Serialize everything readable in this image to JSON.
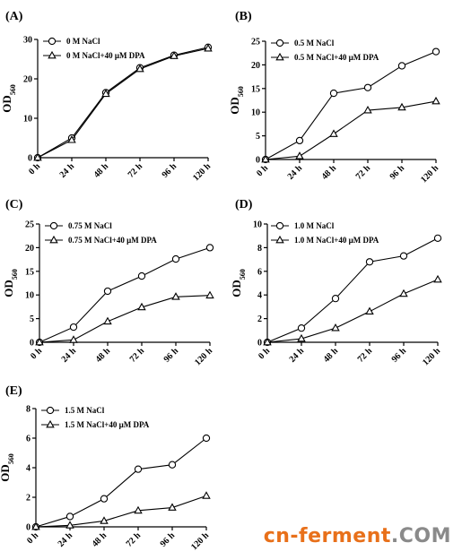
{
  "chart_data": [
    {
      "type": "line",
      "panel_label": "(A)",
      "ylabel": "OD",
      "ylabel_sub": "560",
      "categories": [
        "0 h",
        "24 h",
        "48 h",
        "72 h",
        "96 h",
        "120 h"
      ],
      "ylim": [
        0,
        30
      ],
      "yticks": [
        0,
        10,
        20,
        30
      ],
      "series": [
        {
          "name": "0 M NaCl",
          "marker": "circle",
          "values": [
            0,
            5.0,
            16.5,
            22.8,
            26.0,
            28.0
          ]
        },
        {
          "name": "0 M NaCl+40 μM DPA",
          "marker": "triangle",
          "values": [
            0,
            4.5,
            16.2,
            22.5,
            25.8,
            27.7
          ]
        }
      ]
    },
    {
      "type": "line",
      "panel_label": "(B)",
      "ylabel": "OD",
      "ylabel_sub": "560",
      "categories": [
        "0 h",
        "24 h",
        "48 h",
        "72 h",
        "96 h",
        "120 h"
      ],
      "ylim": [
        0,
        25
      ],
      "yticks": [
        0,
        5,
        10,
        15,
        20,
        25
      ],
      "series": [
        {
          "name": "0.5 M NaCl",
          "marker": "circle",
          "values": [
            0,
            4.0,
            14.0,
            15.2,
            19.8,
            22.8
          ]
        },
        {
          "name": "0.5 M NaCl+40 μM DPA",
          "marker": "triangle",
          "values": [
            0,
            0.7,
            5.4,
            10.4,
            11.0,
            12.3
          ]
        }
      ]
    },
    {
      "type": "line",
      "panel_label": "(C)",
      "ylabel": "OD",
      "ylabel_sub": "560",
      "categories": [
        "0 h",
        "24 h",
        "48 h",
        "72 h",
        "96 h",
        "120 h"
      ],
      "ylim": [
        0,
        25
      ],
      "yticks": [
        0,
        5,
        10,
        15,
        20,
        25
      ],
      "series": [
        {
          "name": "0.75 M NaCl",
          "marker": "circle",
          "values": [
            0,
            3.2,
            10.8,
            14.0,
            17.6,
            20.0
          ]
        },
        {
          "name": "0.75 M NaCl+40 μM DPA",
          "marker": "triangle",
          "values": [
            0,
            0.5,
            4.4,
            7.4,
            9.6,
            9.9
          ]
        }
      ]
    },
    {
      "type": "line",
      "panel_label": "(D)",
      "ylabel": "OD",
      "ylabel_sub": "560",
      "categories": [
        "0 h",
        "24 h",
        "48 h",
        "72 h",
        "96 h",
        "120 h"
      ],
      "ylim": [
        0,
        10
      ],
      "yticks": [
        0,
        2,
        4,
        6,
        8,
        10
      ],
      "series": [
        {
          "name": "1.0 M NaCl",
          "marker": "circle",
          "values": [
            0,
            1.2,
            3.7,
            6.8,
            7.3,
            8.8
          ]
        },
        {
          "name": "1.0 M NaCl+40 μM DPA",
          "marker": "triangle",
          "values": [
            0,
            0.3,
            1.2,
            2.6,
            4.1,
            5.3
          ]
        }
      ]
    },
    {
      "type": "line",
      "panel_label": "(E)",
      "ylabel": "OD",
      "ylabel_sub": "560",
      "categories": [
        "0 h",
        "24 h",
        "48 h",
        "72 h",
        "96 h",
        "120 h"
      ],
      "ylim": [
        0,
        8
      ],
      "yticks": [
        0,
        2,
        4,
        6,
        8
      ],
      "series": [
        {
          "name": "1.5 M NaCl",
          "marker": "circle",
          "values": [
            0,
            0.7,
            1.9,
            3.9,
            4.2,
            6.0
          ]
        },
        {
          "name": "1.5 M NaCl+40 μM DPA",
          "marker": "triangle",
          "values": [
            0,
            0.1,
            0.4,
            1.1,
            1.3,
            2.1
          ]
        }
      ]
    }
  ],
  "watermark": {
    "main": "cn-ferment",
    "tail": ".COM",
    "color": "#e8701a"
  }
}
